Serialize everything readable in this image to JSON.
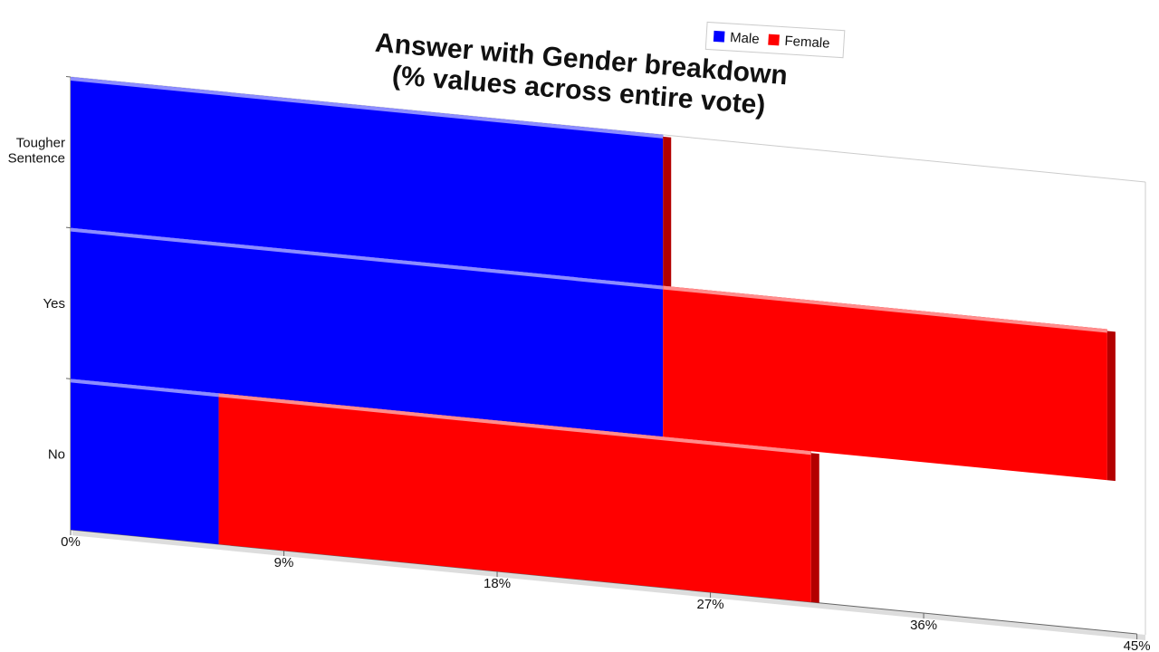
{
  "chart_data": {
    "type": "bar",
    "orientation": "horizontal",
    "stacked": true,
    "title": "Answer with Gender breakdown\n(% values across entire vote)",
    "categories": [
      "Tougher Sentence",
      "Yes",
      "No"
    ],
    "series": [
      {
        "name": "Male",
        "color": "#0000ff",
        "values": [
          25,
          25,
          6.25
        ]
      },
      {
        "name": "Female",
        "color": "#ff0000",
        "values": [
          0,
          18.75,
          25
        ]
      }
    ],
    "xlim": [
      0,
      45
    ],
    "xticks": [
      {
        "value": 0,
        "label": "0%"
      },
      {
        "value": 9,
        "label": "9%"
      },
      {
        "value": 18,
        "label": "18%"
      },
      {
        "value": 27,
        "label": "27%"
      },
      {
        "value": 36,
        "label": "36%"
      },
      {
        "value": 45,
        "label": "45%"
      }
    ],
    "legend": "top"
  }
}
